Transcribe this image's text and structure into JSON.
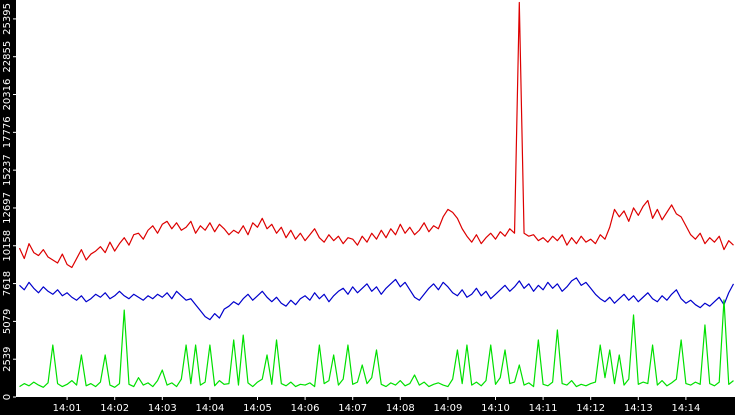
{
  "chart_data": {
    "type": "line",
    "categories": [
      null,
      null,
      null,
      null,
      null,
      null,
      null,
      null,
      null,
      null,
      "14:01",
      null,
      null,
      null,
      null,
      null,
      null,
      null,
      null,
      null,
      "14:02",
      null,
      null,
      null,
      null,
      null,
      null,
      null,
      null,
      null,
      "14:03",
      null,
      null,
      null,
      null,
      null,
      null,
      null,
      null,
      null,
      "14:04",
      null,
      null,
      null,
      null,
      null,
      null,
      null,
      null,
      null,
      "14:05",
      null,
      null,
      null,
      null,
      null,
      null,
      null,
      null,
      null,
      "14:06",
      null,
      null,
      null,
      null,
      null,
      null,
      null,
      null,
      null,
      "14:07",
      null,
      null,
      null,
      null,
      null,
      null,
      null,
      null,
      null,
      "14:08",
      null,
      null,
      null,
      null,
      null,
      null,
      null,
      null,
      null,
      "14:09",
      null,
      null,
      null,
      null,
      null,
      null,
      null,
      null,
      null,
      "14:10",
      null,
      null,
      null,
      null,
      null,
      null,
      null,
      null,
      null,
      "14:11",
      null,
      null,
      null,
      null,
      null,
      null,
      null,
      null,
      null,
      "14:12",
      null,
      null,
      null,
      null,
      null,
      null,
      null,
      null,
      null,
      "14:13",
      null,
      null,
      null,
      null,
      null,
      null,
      null,
      null,
      null,
      "14:14",
      null,
      null,
      null,
      null,
      null,
      null,
      null,
      null,
      null,
      null
    ],
    "series": [
      {
        "color": "#dd0000",
        "values": [
          10000,
          9300,
          10300,
          9700,
          9500,
          9900,
          9400,
          9200,
          9000,
          9600,
          8900,
          8700,
          9300,
          9900,
          9200,
          9600,
          9800,
          10100,
          9700,
          10400,
          9800,
          10300,
          10700,
          10200,
          10900,
          11000,
          10600,
          11200,
          11500,
          11000,
          11600,
          11800,
          11300,
          11700,
          11200,
          11400,
          11800,
          11000,
          11500,
          11200,
          11700,
          11100,
          11600,
          11300,
          10900,
          11200,
          11000,
          11500,
          10900,
          11700,
          11400,
          12000,
          11300,
          11600,
          11000,
          11400,
          10700,
          11200,
          10600,
          11000,
          10500,
          10900,
          11300,
          10700,
          10400,
          10900,
          10500,
          10800,
          10300,
          10700,
          10600,
          10200,
          10800,
          10400,
          11000,
          10600,
          11200,
          10700,
          11300,
          10900,
          11600,
          11000,
          11400,
          10900,
          11200,
          11700,
          11100,
          11500,
          11300,
          12100,
          12600,
          12400,
          12000,
          11300,
          10800,
          10400,
          10900,
          10300,
          10700,
          11000,
          10600,
          11100,
          10800,
          11300,
          11000,
          26500,
          11000,
          10800,
          10900,
          10500,
          10700,
          10400,
          10800,
          10500,
          10900,
          10200,
          10700,
          10300,
          10800,
          10400,
          10600,
          10300,
          10900,
          10600,
          11400,
          12600,
          12100,
          12500,
          11800,
          12700,
          12200,
          12800,
          13200,
          12000,
          12600,
          11900,
          12400,
          12900,
          12300,
          12100,
          11500,
          10900,
          10600,
          11000,
          10300,
          10700,
          10400,
          10800,
          9900,
          10500,
          10200
        ]
      },
      {
        "color": "#0000cc",
        "values": [
          7500,
          7200,
          7700,
          7300,
          7000,
          7400,
          7100,
          6900,
          7200,
          6800,
          7000,
          6700,
          6500,
          6800,
          6400,
          6600,
          6900,
          6700,
          7000,
          6600,
          6800,
          7100,
          6800,
          6600,
          6900,
          6700,
          6500,
          6800,
          6600,
          6900,
          6700,
          7000,
          6600,
          7100,
          6800,
          6500,
          6600,
          6200,
          5800,
          5400,
          5200,
          5600,
          5300,
          5900,
          6100,
          6400,
          6200,
          6600,
          6900,
          6500,
          6800,
          7100,
          6700,
          6400,
          6700,
          6300,
          6100,
          6500,
          6200,
          6600,
          6800,
          6500,
          7000,
          6600,
          6900,
          6400,
          6800,
          7100,
          7300,
          6900,
          7400,
          7000,
          7300,
          7600,
          7100,
          7400,
          6900,
          7300,
          7600,
          7900,
          7400,
          7700,
          7200,
          6700,
          6500,
          6900,
          7300,
          7600,
          7200,
          7700,
          7400,
          7000,
          6800,
          7200,
          6700,
          6900,
          7300,
          6800,
          7100,
          6600,
          6900,
          7200,
          7500,
          7100,
          7400,
          7800,
          7300,
          7600,
          7100,
          7500,
          7200,
          7700,
          7300,
          7600,
          7100,
          7400,
          7800,
          8000,
          7500,
          7700,
          7300,
          6900,
          6600,
          6400,
          6700,
          6300,
          6600,
          6900,
          6500,
          6800,
          6400,
          6700,
          7000,
          6600,
          6400,
          6800,
          6500,
          6900,
          7200,
          6600,
          6300,
          6500,
          6200,
          6000,
          6300,
          6100,
          6400,
          6700,
          6200,
          7000,
          7600
        ]
      },
      {
        "color": "#00e000",
        "values": [
          700,
          900,
          750,
          1000,
          800,
          650,
          950,
          3490,
          900,
          700,
          850,
          1100,
          800,
          2820,
          750,
          900,
          700,
          1000,
          2820,
          800,
          650,
          900,
          5840,
          850,
          700,
          1300,
          800,
          950,
          700,
          1100,
          1810,
          800,
          950,
          700,
          1200,
          3490,
          900,
          3490,
          800,
          1000,
          3490,
          750,
          1100,
          850,
          900,
          3830,
          800,
          4160,
          950,
          700,
          1000,
          1200,
          2820,
          850,
          3830,
          900,
          750,
          1000,
          700,
          850,
          800,
          950,
          700,
          3490,
          900,
          1100,
          2820,
          800,
          1200,
          3490,
          850,
          1000,
          2150,
          900,
          1300,
          3160,
          850,
          700,
          950,
          800,
          1100,
          750,
          900,
          1480,
          800,
          1000,
          700,
          850,
          950,
          800,
          700,
          1200,
          3160,
          900,
          3490,
          800,
          1000,
          750,
          1100,
          3490,
          850,
          1300,
          3160,
          900,
          1000,
          2150,
          800,
          950,
          700,
          3830,
          850,
          750,
          1000,
          4500,
          900,
          800,
          1100,
          700,
          850,
          750,
          900,
          1000,
          3490,
          1300,
          3160,
          900,
          2820,
          800,
          1200,
          5510,
          850,
          1000,
          900,
          3490,
          800,
          1100,
          750,
          950,
          1200,
          3830,
          900,
          800,
          1000,
          850,
          4840,
          900,
          750,
          1000,
          6520,
          850,
          1100
        ]
      }
    ],
    "ylim": [
      0,
      26665
    ],
    "yticks": [
      0,
      2539,
      5079,
      7618,
      10158,
      12697,
      15237,
      17776,
      20316,
      22855,
      25395
    ]
  }
}
